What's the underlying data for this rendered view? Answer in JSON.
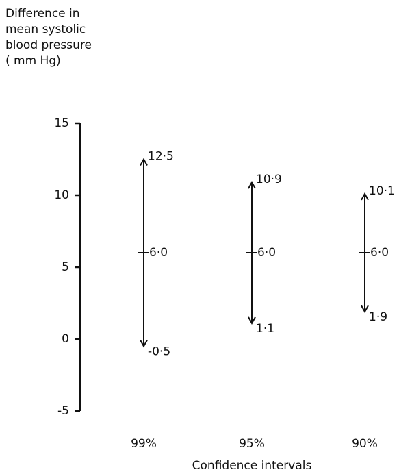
{
  "chart_data": {
    "type": "interval",
    "ylabel": [
      "Difference in",
      "mean systolic",
      "blood pressure",
      "( mm Hg)"
    ],
    "xlabel": "Confidence intervals",
    "categories": [
      "99%",
      "95%",
      "90%"
    ],
    "values": [
      6.0,
      6.0,
      6.0
    ],
    "value_labels": [
      "6·0",
      "6·0",
      "6·0"
    ],
    "upper": [
      12.5,
      10.9,
      10.1
    ],
    "upper_labels": [
      "12·5",
      "10·9",
      "10·1"
    ],
    "lower": [
      -0.5,
      1.1,
      1.9
    ],
    "lower_labels": [
      "-0·5",
      "1·1",
      "1·9"
    ],
    "color": "#111111",
    "ylim": [
      -5,
      15
    ],
    "yticks": [
      -5,
      0,
      5,
      10,
      15
    ]
  }
}
